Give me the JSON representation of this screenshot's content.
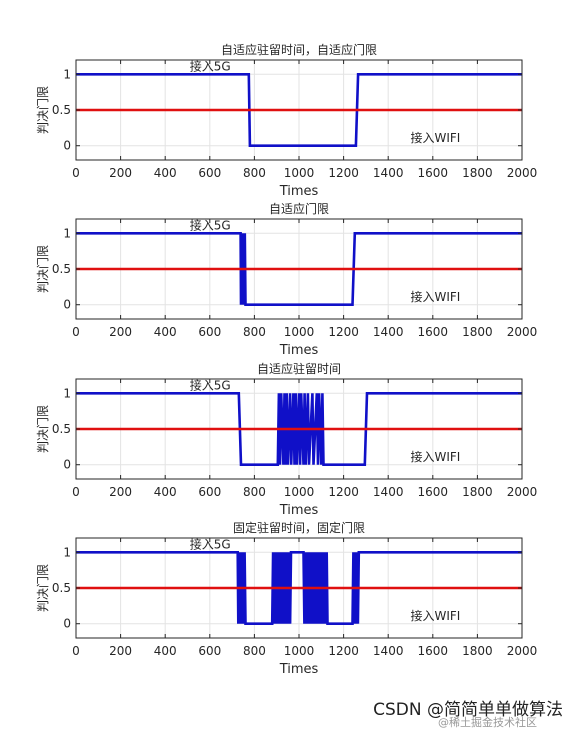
{
  "watermark": "CSDN @简简单单做算法",
  "watermark_faint": "@稀土掘金技术社区",
  "chart_data": [
    {
      "type": "line",
      "title": "自适应驻留时间，自适应门限",
      "xlabel": "Times",
      "ylabel": "判决门限",
      "xlim": [
        0,
        2000
      ],
      "ylim": [
        -0.2,
        1.2
      ],
      "xticks": [
        "0",
        "200",
        "400",
        "600",
        "800",
        "1000",
        "1200",
        "1400",
        "1600",
        "1800",
        "2000"
      ],
      "yticks": [
        "0",
        "0.5",
        "1"
      ],
      "grid": true,
      "annotations": [
        {
          "text": "接入5G",
          "x": 510,
          "y": 1.05
        },
        {
          "text": "接入WIFI",
          "x": 1500,
          "y": 0.05
        }
      ],
      "series": [
        {
          "color": "#1010c8",
          "x": [
            0,
            775,
            780,
            1255,
            1265,
            2000
          ],
          "y": [
            1,
            1,
            0,
            0,
            1,
            1
          ]
        },
        {
          "color": "#e01010",
          "x": [
            0,
            2000
          ],
          "y": [
            0.5,
            0.5
          ]
        }
      ]
    },
    {
      "type": "line",
      "title": "自适应门限",
      "xlabel": "Times",
      "ylabel": "判决门限",
      "xlim": [
        0,
        2000
      ],
      "ylim": [
        -0.2,
        1.2
      ],
      "xticks": [
        "0",
        "200",
        "400",
        "600",
        "800",
        "1000",
        "1200",
        "1400",
        "1600",
        "1800",
        "2000"
      ],
      "yticks": [
        "0",
        "0.5",
        "1"
      ],
      "grid": true,
      "annotations": [
        {
          "text": "接入5G",
          "x": 510,
          "y": 1.05
        },
        {
          "text": "接入WIFI",
          "x": 1500,
          "y": 0.05
        }
      ],
      "series": [
        {
          "color": "#1010c8",
          "x": [
            0,
            738,
            740,
            745,
            747,
            750,
            752,
            757,
            760,
            1240,
            1250,
            2000
          ],
          "y": [
            1,
            1,
            0,
            1,
            0,
            1,
            0,
            1,
            0,
            0,
            1,
            1
          ]
        },
        {
          "color": "#e01010",
          "x": [
            0,
            2000
          ],
          "y": [
            0.5,
            0.5
          ]
        }
      ]
    },
    {
      "type": "line",
      "title": "自适应驻留时间",
      "xlabel": "Times",
      "ylabel": "判决门限",
      "xlim": [
        0,
        2000
      ],
      "ylim": [
        -0.2,
        1.2
      ],
      "xticks": [
        "0",
        "200",
        "400",
        "600",
        "800",
        "1000",
        "1200",
        "1400",
        "1600",
        "1800",
        "2000"
      ],
      "yticks": [
        "0",
        "0.5",
        "1"
      ],
      "grid": true,
      "annotations": [
        {
          "text": "接入5G",
          "x": 510,
          "y": 1.05
        },
        {
          "text": "接入WIFI",
          "x": 1500,
          "y": 0.05
        }
      ],
      "series": [
        {
          "color": "#1010c8",
          "x": [
            0,
            730,
            740,
            905,
            910,
            915,
            920,
            930,
            935,
            940,
            945,
            950,
            960,
            965,
            975,
            980,
            985,
            990,
            1000,
            1005,
            1010,
            1020,
            1025,
            1030,
            1040,
            1045,
            1060,
            1065,
            1080,
            1085,
            1090,
            1100,
            1105,
            1110,
            1295,
            1305,
            2000
          ],
          "y": [
            1,
            1,
            0,
            0,
            1,
            0,
            1,
            0,
            1,
            0,
            1,
            0,
            1,
            0,
            1,
            0,
            1,
            0,
            1,
            0,
            1,
            0,
            1,
            0,
            1,
            0,
            1,
            0,
            1,
            0,
            1,
            0,
            1,
            0,
            0,
            1,
            1
          ]
        },
        {
          "color": "#e01010",
          "x": [
            0,
            2000
          ],
          "y": [
            0.5,
            0.5
          ]
        }
      ]
    },
    {
      "type": "line",
      "title": "固定驻留时间，固定门限",
      "xlabel": "Times",
      "ylabel": "判决门限",
      "xlim": [
        0,
        2000
      ],
      "ylim": [
        -0.2,
        1.2
      ],
      "xticks": [
        "0",
        "200",
        "400",
        "600",
        "800",
        "1000",
        "1200",
        "1400",
        "1600",
        "1800",
        "2000"
      ],
      "yticks": [
        "0",
        "0.5",
        "1"
      ],
      "grid": true,
      "annotations": [
        {
          "text": "接入5G",
          "x": 510,
          "y": 1.05
        },
        {
          "text": "接入WIFI",
          "x": 1500,
          "y": 0.05
        }
      ],
      "series": [
        {
          "color": "#1010c8",
          "x": [
            0,
            725,
            728,
            732,
            736,
            740,
            744,
            748,
            752,
            756,
            760,
            880,
            884,
            888,
            892,
            896,
            900,
            904,
            908,
            912,
            916,
            920,
            924,
            928,
            932,
            936,
            940,
            944,
            948,
            952,
            956,
            960,
            964,
            968,
            1020,
            1024,
            1028,
            1032,
            1036,
            1040,
            1044,
            1048,
            1052,
            1056,
            1060,
            1064,
            1068,
            1072,
            1076,
            1080,
            1084,
            1088,
            1092,
            1096,
            1100,
            1104,
            1108,
            1112,
            1116,
            1120,
            1124,
            1128,
            1240,
            1244,
            1248,
            1252,
            1256,
            1260,
            1264,
            1268,
            1272,
            2000
          ],
          "y": [
            1,
            1,
            0,
            1,
            0,
            1,
            0,
            1,
            0,
            1,
            0,
            0,
            1,
            0,
            1,
            0,
            1,
            0,
            1,
            0,
            1,
            0,
            1,
            0,
            1,
            0,
            1,
            0,
            1,
            0,
            1,
            0,
            1,
            1,
            1,
            0,
            1,
            0,
            1,
            0,
            1,
            0,
            1,
            0,
            1,
            0,
            1,
            0,
            1,
            0,
            1,
            0,
            1,
            0,
            1,
            0,
            1,
            0,
            1,
            0,
            1,
            0,
            0,
            1,
            0,
            1,
            0,
            1,
            0,
            1,
            1,
            1
          ]
        },
        {
          "color": "#e01010",
          "x": [
            0,
            2000
          ],
          "y": [
            0.5,
            0.5
          ]
        }
      ]
    }
  ]
}
